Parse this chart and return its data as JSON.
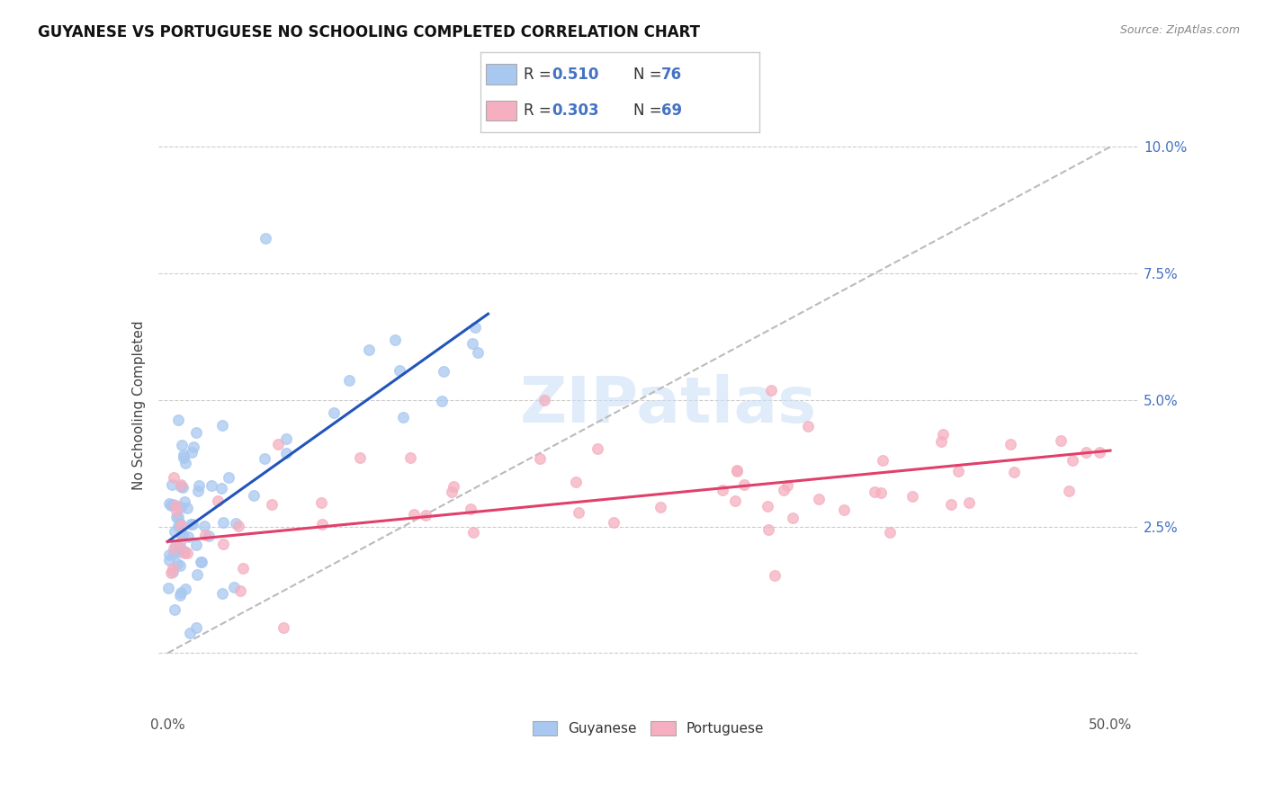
{
  "title": "GUYANESE VS PORTUGUESE NO SCHOOLING COMPLETED CORRELATION CHART",
  "source": "Source: ZipAtlas.com",
  "ylabel": "No Schooling Completed",
  "xlim": [
    -0.005,
    0.515
  ],
  "ylim": [
    -0.012,
    0.11
  ],
  "xticks": [
    0.0,
    0.1,
    0.2,
    0.3,
    0.4,
    0.5
  ],
  "xtick_labels_show": [
    "0.0%",
    "",
    "",
    "",
    "",
    "50.0%"
  ],
  "yticks": [
    0.0,
    0.025,
    0.05,
    0.075,
    0.1
  ],
  "ytick_right_labels": [
    "",
    "2.5%",
    "5.0%",
    "7.5%",
    "10.0%"
  ],
  "blue_color": "#a8c8f0",
  "pink_color": "#f5afc0",
  "blue_line_color": "#2255bb",
  "pink_line_color": "#e0406a",
  "dashed_line_color": "#bbbbbb",
  "watermark": "ZIPatlas",
  "legend_label_blue": "Guyanese",
  "legend_label_pink": "Portuguese",
  "guy_R": 0.51,
  "guy_N": 76,
  "port_R": 0.303,
  "port_N": 69,
  "guy_line_x0": 0.0,
  "guy_line_y0": 0.022,
  "guy_line_x1": 0.17,
  "guy_line_y1": 0.067,
  "port_line_x0": 0.0,
  "port_line_y0": 0.022,
  "port_line_x1": 0.5,
  "port_line_y1": 0.04
}
